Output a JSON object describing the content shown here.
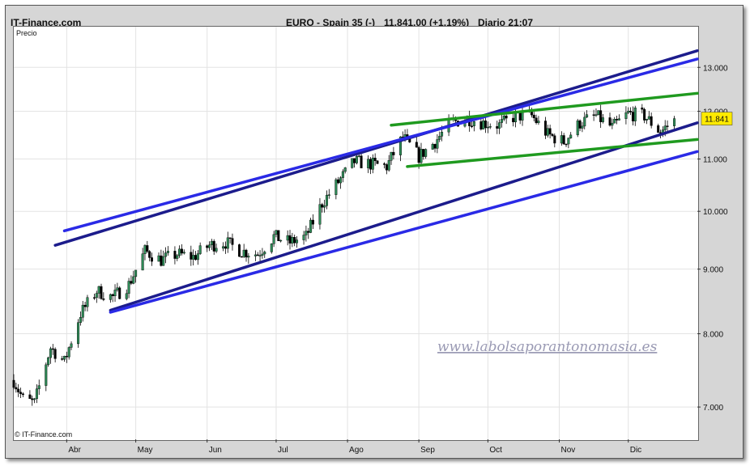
{
  "header": {
    "site": "IT-Finance.com",
    "instrument": "EURO - Spain 35 (-)",
    "price_change": "11.841,00 (+1,19%)",
    "period_time": "Diario  21:07"
  },
  "panel_label": "Precio",
  "copyright": "© IT-Finance.com",
  "watermark": "www.labolsaporantonomasia.es",
  "last_price_label": "11.841",
  "colors": {
    "up_candle": "#2e8b57",
    "down_candle": "#000000",
    "channel_dark": "#1c1c8c",
    "channel_blue": "#2a2ae6",
    "wedge_green": "#1f9a1f",
    "price_tag": "#ffea00"
  },
  "chart_data": {
    "type": "candlestick",
    "y_scale": "log",
    "ylim": [
      6600,
      14000
    ],
    "y_ticks": [
      7000,
      8000,
      9000,
      10000,
      11000,
      12000,
      13000
    ],
    "y_tick_labels": [
      "7.000",
      "8.000",
      "9.000",
      "10.000",
      "11.000",
      "12.000",
      "13.000"
    ],
    "x_range": [
      "2009-03-09",
      "2009-12-31"
    ],
    "x_ticks": [
      {
        "date": "2009-04-01",
        "label": "Abr"
      },
      {
        "date": "2009-05-01",
        "label": "May"
      },
      {
        "date": "2009-06-01",
        "label": "Jun"
      },
      {
        "date": "2009-07-01",
        "label": "Jul"
      },
      {
        "date": "2009-08-01",
        "label": "Ago"
      },
      {
        "date": "2009-09-01",
        "label": "Sep"
      },
      {
        "date": "2009-10-01",
        "label": "Oct"
      },
      {
        "date": "2009-11-01",
        "label": "Nov"
      },
      {
        "date": "2009-12-01",
        "label": "Dic"
      }
    ],
    "close_path": [
      [
        "2009-03-09",
        7350
      ],
      [
        "2009-03-13",
        7100
      ],
      [
        "2009-03-18",
        7050
      ],
      [
        "2009-03-25",
        7800
      ],
      [
        "2009-03-31",
        7600
      ],
      [
        "2009-04-07",
        8300
      ],
      [
        "2009-04-14",
        8650
      ],
      [
        "2009-04-21",
        8550
      ],
      [
        "2009-04-28",
        8750
      ],
      [
        "2009-05-05",
        9300
      ],
      [
        "2009-05-12",
        9150
      ],
      [
        "2009-05-19",
        9250
      ],
      [
        "2009-05-26",
        9200
      ],
      [
        "2009-06-02",
        9400
      ],
      [
        "2009-06-09",
        9450
      ],
      [
        "2009-06-16",
        9300
      ],
      [
        "2009-06-23",
        9250
      ],
      [
        "2009-06-30",
        9550
      ],
      [
        "2009-07-07",
        9450
      ],
      [
        "2009-07-14",
        9550
      ],
      [
        "2009-07-21",
        10150
      ],
      [
        "2009-07-28",
        10550
      ],
      [
        "2009-08-04",
        10950
      ],
      [
        "2009-08-11",
        10900
      ],
      [
        "2009-08-18",
        10850
      ],
      [
        "2009-08-25",
        11450
      ],
      [
        "2009-09-01",
        11050
      ],
      [
        "2009-09-08",
        11350
      ],
      [
        "2009-09-15",
        11750
      ],
      [
        "2009-09-22",
        11850
      ],
      [
        "2009-09-29",
        11750
      ],
      [
        "2009-10-06",
        11700
      ],
      [
        "2009-10-13",
        11900
      ],
      [
        "2009-10-20",
        11900
      ],
      [
        "2009-10-27",
        11500
      ],
      [
        "2009-11-03",
        11350
      ],
      [
        "2009-11-10",
        11750
      ],
      [
        "2009-11-17",
        11900
      ],
      [
        "2009-11-24",
        11650
      ],
      [
        "2009-12-01",
        11950
      ],
      [
        "2009-12-08",
        11900
      ],
      [
        "2009-12-15",
        11550
      ],
      [
        "2009-12-21",
        11841
      ]
    ],
    "last_close": 11841,
    "trendlines": [
      {
        "color_key": "channel_dark",
        "from": [
          "2009-03-27",
          9400
        ],
        "to": [
          "2009-12-31",
          13400
        ]
      },
      {
        "color_key": "channel_blue",
        "from": [
          "2009-03-31",
          9650
        ],
        "to": [
          "2009-12-31",
          13200
        ]
      },
      {
        "color_key": "channel_dark",
        "from": [
          "2009-04-20",
          8350
        ],
        "to": [
          "2009-12-31",
          11750
        ]
      },
      {
        "color_key": "channel_blue",
        "from": [
          "2009-04-20",
          8320
        ],
        "to": [
          "2009-12-31",
          11150
        ]
      },
      {
        "color_key": "wedge_green",
        "from": [
          "2009-08-20",
          11700
        ],
        "to": [
          "2009-12-31",
          12400
        ]
      },
      {
        "color_key": "wedge_green",
        "from": [
          "2009-08-27",
          10850
        ],
        "to": [
          "2009-12-31",
          11400
        ]
      }
    ]
  }
}
